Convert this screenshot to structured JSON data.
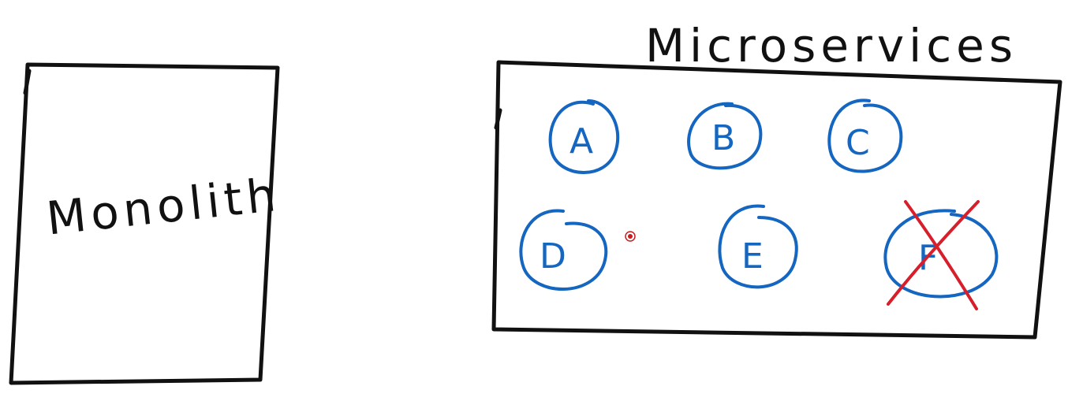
{
  "diagram": {
    "monolith": {
      "label": "Monolith"
    },
    "microservices": {
      "title": "Microservices",
      "services": [
        {
          "label": "A",
          "removed": false
        },
        {
          "label": "B",
          "removed": false
        },
        {
          "label": "C",
          "removed": false
        },
        {
          "label": "D",
          "removed": false
        },
        {
          "label": "E",
          "removed": false
        },
        {
          "label": "F",
          "removed": true
        }
      ]
    },
    "colors": {
      "ink": "#111111",
      "service": "#1466c0",
      "removed_mark": "#d71f2b",
      "pointer": "#c81e1e"
    }
  }
}
